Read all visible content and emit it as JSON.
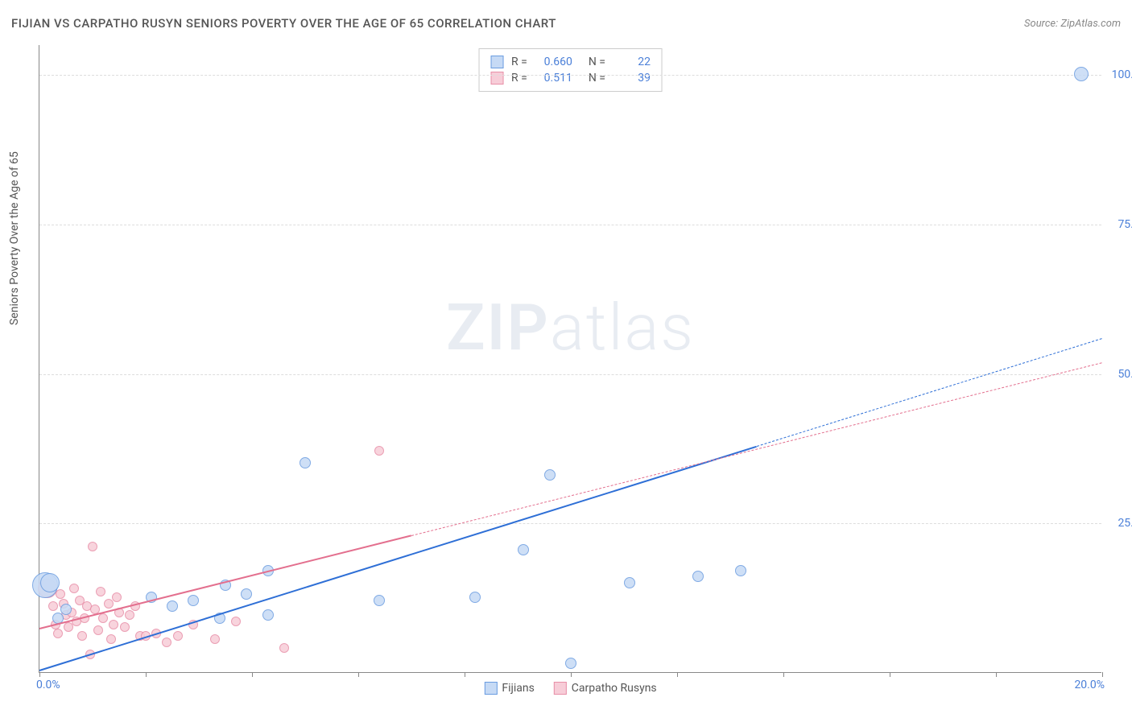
{
  "title": "FIJIAN VS CARPATHO RUSYN SENIORS POVERTY OVER THE AGE OF 65 CORRELATION CHART",
  "source_label": "Source:",
  "source_name": "ZipAtlas.com",
  "ylabel": "Seniors Poverty Over the Age of 65",
  "watermark_bold": "ZIP",
  "watermark_light": "atlas",
  "chart": {
    "type": "scatter",
    "xlim": [
      0,
      20
    ],
    "ylim": [
      0,
      105
    ],
    "xtick_positions": [
      0,
      2,
      4,
      6,
      8,
      10,
      12,
      14,
      16,
      18,
      20
    ],
    "xtick_labels_shown": {
      "0": "0.0%",
      "20": "20.0%"
    },
    "ytick_positions": [
      25,
      50,
      75,
      100
    ],
    "ytick_labels": [
      "25.0%",
      "50.0%",
      "75.0%",
      "100.0%"
    ],
    "grid_color": "#dddddd",
    "background_color": "#ffffff",
    "series": [
      {
        "name": "Fijians",
        "fill": "#c6daf5",
        "stroke": "#6a9ce0",
        "trend_color": "#2e6fd6",
        "trend_style": "solid",
        "trend_dashed_extension": true,
        "R": "0.660",
        "N": "22",
        "default_r": 7,
        "points": [
          {
            "x": 0.1,
            "y": 14.5,
            "r": 16
          },
          {
            "x": 0.2,
            "y": 15.0,
            "r": 12
          },
          {
            "x": 0.35,
            "y": 9.0
          },
          {
            "x": 0.5,
            "y": 10.5
          },
          {
            "x": 2.1,
            "y": 12.5
          },
          {
            "x": 2.5,
            "y": 11.0
          },
          {
            "x": 2.9,
            "y": 12.0
          },
          {
            "x": 3.4,
            "y": 9.0
          },
          {
            "x": 3.5,
            "y": 14.5
          },
          {
            "x": 3.9,
            "y": 13.0
          },
          {
            "x": 4.3,
            "y": 17.0
          },
          {
            "x": 4.3,
            "y": 9.5
          },
          {
            "x": 5.0,
            "y": 35.0
          },
          {
            "x": 6.4,
            "y": 12.0
          },
          {
            "x": 8.2,
            "y": 12.5
          },
          {
            "x": 9.6,
            "y": 33.0
          },
          {
            "x": 9.1,
            "y": 20.5
          },
          {
            "x": 10.0,
            "y": 1.5
          },
          {
            "x": 11.1,
            "y": 15.0
          },
          {
            "x": 12.4,
            "y": 16.0
          },
          {
            "x": 13.2,
            "y": 17.0
          },
          {
            "x": 19.6,
            "y": 100.0,
            "r": 9
          }
        ],
        "trend": {
          "x1": 0,
          "y1": 0.5,
          "x2": 20,
          "y2": 56,
          "solid_until_x": 13.5
        }
      },
      {
        "name": "Carpatho Rusyns",
        "fill": "#f7cdd8",
        "stroke": "#e88fa8",
        "trend_color": "#e36f8e",
        "trend_style": "solid",
        "trend_dashed_extension": true,
        "R": "0.511",
        "N": "39",
        "default_r": 6,
        "points": [
          {
            "x": 0.15,
            "y": 14.0,
            "r": 12
          },
          {
            "x": 0.25,
            "y": 11.0
          },
          {
            "x": 0.3,
            "y": 8.0
          },
          {
            "x": 0.35,
            "y": 6.5
          },
          {
            "x": 0.4,
            "y": 13.0
          },
          {
            "x": 0.45,
            "y": 11.5
          },
          {
            "x": 0.5,
            "y": 9.5
          },
          {
            "x": 0.55,
            "y": 7.5
          },
          {
            "x": 0.6,
            "y": 10.0
          },
          {
            "x": 0.65,
            "y": 14.0
          },
          {
            "x": 0.7,
            "y": 8.5
          },
          {
            "x": 0.75,
            "y": 12.0
          },
          {
            "x": 0.8,
            "y": 6.0
          },
          {
            "x": 0.85,
            "y": 9.0
          },
          {
            "x": 0.9,
            "y": 11.0
          },
          {
            "x": 0.95,
            "y": 3.0
          },
          {
            "x": 1.0,
            "y": 21.0
          },
          {
            "x": 1.05,
            "y": 10.5
          },
          {
            "x": 1.1,
            "y": 7.0
          },
          {
            "x": 1.15,
            "y": 13.5
          },
          {
            "x": 1.2,
            "y": 9.0
          },
          {
            "x": 1.3,
            "y": 11.5
          },
          {
            "x": 1.35,
            "y": 5.5
          },
          {
            "x": 1.4,
            "y": 8.0
          },
          {
            "x": 1.45,
            "y": 12.5
          },
          {
            "x": 1.5,
            "y": 10.0
          },
          {
            "x": 1.6,
            "y": 7.5
          },
          {
            "x": 1.7,
            "y": 9.5
          },
          {
            "x": 1.8,
            "y": 11.0
          },
          {
            "x": 1.9,
            "y": 6.0
          },
          {
            "x": 2.0,
            "y": 6.0
          },
          {
            "x": 2.2,
            "y": 6.5
          },
          {
            "x": 2.4,
            "y": 5.0
          },
          {
            "x": 2.6,
            "y": 6.0
          },
          {
            "x": 2.9,
            "y": 8.0
          },
          {
            "x": 3.3,
            "y": 5.5
          },
          {
            "x": 3.7,
            "y": 8.5
          },
          {
            "x": 4.6,
            "y": 4.0
          },
          {
            "x": 6.4,
            "y": 37.0
          }
        ],
        "trend": {
          "x1": 0,
          "y1": 7.5,
          "x2": 20,
          "y2": 52,
          "solid_until_x": 7.0
        }
      }
    ]
  },
  "colors": {
    "axis": "#888888",
    "tick_label": "#4a7fd8",
    "text": "#555555"
  }
}
